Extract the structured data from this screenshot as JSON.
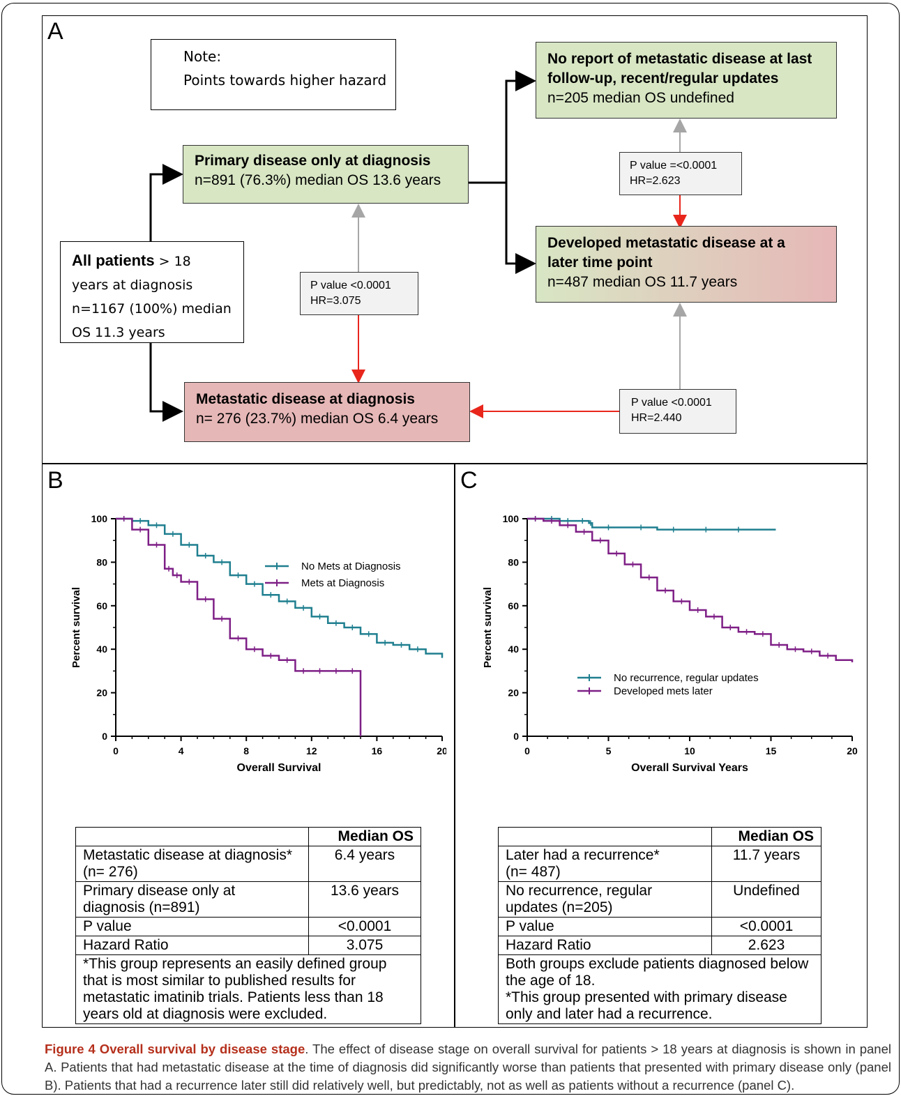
{
  "panels": {
    "a": "A",
    "b": "B",
    "c": "C"
  },
  "flow": {
    "note": {
      "title": "Note:",
      "text": "Points towards higher hazard"
    },
    "all_patients": {
      "bold": "All patients",
      "line1_rest": " > 18",
      "line2": "years at diagnosis",
      "line3": "n=1167 (100%) median",
      "line4": "OS 11.3 years"
    },
    "primary": {
      "title": "Primary disease only at diagnosis",
      "text": "n=891 (76.3%) median OS 13.6 years"
    },
    "metastatic": {
      "title": "Metastatic disease at diagnosis",
      "text": "n= 276 (23.7%) median OS 6.4 years"
    },
    "no_report": {
      "title1": "No report of metastatic disease at last",
      "title2": "follow-up, recent/regular updates",
      "text": "n=205 median OS undefined"
    },
    "developed": {
      "title1": "Developed metastatic disease at a",
      "title2": "later time point",
      "text": "n=487  median OS 11.7 years"
    },
    "stat_a": {
      "p": "P value <0.0001",
      "hr": "HR=3.075"
    },
    "stat_b": {
      "p": "P value =<0.0001",
      "hr": "HR=2.623"
    },
    "stat_c": {
      "p": "P value <0.0001",
      "hr": "HR=2.440"
    }
  },
  "colors": {
    "teal": "#1f7f8f",
    "purple": "#7e1f86",
    "red_arrow": "#e8261c",
    "grey_arrow": "#a6a6a6"
  },
  "chart_data": [
    {
      "type": "line",
      "subtype": "kaplan-meier",
      "xlabel": "Overall Survival",
      "ylabel": "Percent survival",
      "xlim": [
        0,
        20
      ],
      "ylim": [
        0,
        100
      ],
      "xticks": [
        "0",
        "4",
        "8",
        "12",
        "16",
        "20"
      ],
      "yticks": [
        "0",
        "20",
        "40",
        "60",
        "80",
        "100"
      ],
      "legend_position": "right",
      "series": [
        {
          "name": "No Mets at Diagnosis",
          "color": "#1f7f8f",
          "x": [
            0,
            1,
            2,
            3,
            4,
            5,
            6,
            7,
            8,
            9,
            10,
            11,
            12,
            13,
            14,
            15,
            16,
            17,
            18,
            19,
            20
          ],
          "y": [
            100,
            99,
            97,
            93,
            88,
            83,
            80,
            74,
            70,
            65,
            62,
            59,
            55,
            52,
            50,
            47,
            43,
            42,
            40,
            38,
            36
          ]
        },
        {
          "name": "Mets at Diagnosis",
          "color": "#7e1f86",
          "x": [
            0,
            1,
            2,
            3,
            3.5,
            4,
            5,
            6,
            7,
            8,
            9,
            10,
            11,
            12,
            13,
            14,
            15,
            15
          ],
          "y": [
            100,
            95,
            88,
            77,
            74,
            71,
            63,
            54,
            45,
            40,
            37,
            35,
            30,
            30,
            30,
            30,
            30,
            0
          ]
        }
      ]
    },
    {
      "type": "line",
      "subtype": "kaplan-meier",
      "xlabel": "Overall Survival Years",
      "ylabel": "Percent survival",
      "xlim": [
        0,
        20
      ],
      "ylim": [
        0,
        100
      ],
      "xticks": [
        "0",
        "5",
        "10",
        "15",
        "20"
      ],
      "yticks": [
        "0",
        "20",
        "40",
        "60",
        "80",
        "100"
      ],
      "legend_position": "bottom-right",
      "series": [
        {
          "name": "No recurrence, regular updates",
          "color": "#1f7f8f",
          "x": [
            0,
            1,
            2,
            3,
            3.8,
            4,
            6,
            8,
            10,
            12,
            14,
            15.3
          ],
          "y": [
            100,
            100,
            99,
            99,
            98,
            96,
            96,
            95,
            95,
            95,
            95,
            95
          ]
        },
        {
          "name": "Developed mets later",
          "color": "#7e1f86",
          "x": [
            0,
            1,
            2,
            3,
            4,
            5,
            6,
            7,
            8,
            9,
            10,
            11,
            12,
            13,
            14,
            15,
            16,
            17,
            18,
            19,
            20
          ],
          "y": [
            100,
            99,
            97,
            94,
            90,
            84,
            79,
            73,
            67,
            62,
            58,
            55,
            50,
            48,
            47,
            42,
            40,
            39,
            37,
            35,
            34
          ]
        }
      ]
    }
  ],
  "table_b": {
    "header": "Median OS",
    "rows": [
      {
        "label": "Metastatic disease at diagnosis*\n(n= 276)",
        "value": "6.4 years"
      },
      {
        "label": "Primary disease only at\ndiagnosis (n=891)",
        "value": "13.6 years"
      },
      {
        "label": "P value",
        "value": "<0.0001"
      },
      {
        "label": "Hazard Ratio",
        "value": "3.075"
      }
    ],
    "footnote": "*This group represents an easily defined group that is most similar to published results for metastatic imatinib trials. Patients less than 18 years old at diagnosis were excluded."
  },
  "table_c": {
    "header": "Median OS",
    "rows": [
      {
        "label": "Later had a recurrence*\n(n= 487)",
        "value": "11.7 years"
      },
      {
        "label": "No recurrence, regular\nupdates (n=205)",
        "value": "Undefined"
      },
      {
        "label": "P value",
        "value": "<0.0001"
      },
      {
        "label": "Hazard Ratio",
        "value": "2.623"
      }
    ],
    "footnote1": "Both groups exclude patients diagnosed below the age of 18.",
    "footnote2": "*This group presented with primary disease only and later had a recurrence."
  },
  "caption": {
    "label": "Figure 4 Overall survival by disease stage",
    "text": ". The effect of disease stage on overall survival for patients > 18 years at diagnosis is shown in panel A. Patients that had metastatic disease at the time of diagnosis did significantly worse than patients that presented with primary disease only (panel B). Patients that had a recurrence later still did relatively well, but predictably, not as well as patients without a recurrence (panel C)."
  }
}
